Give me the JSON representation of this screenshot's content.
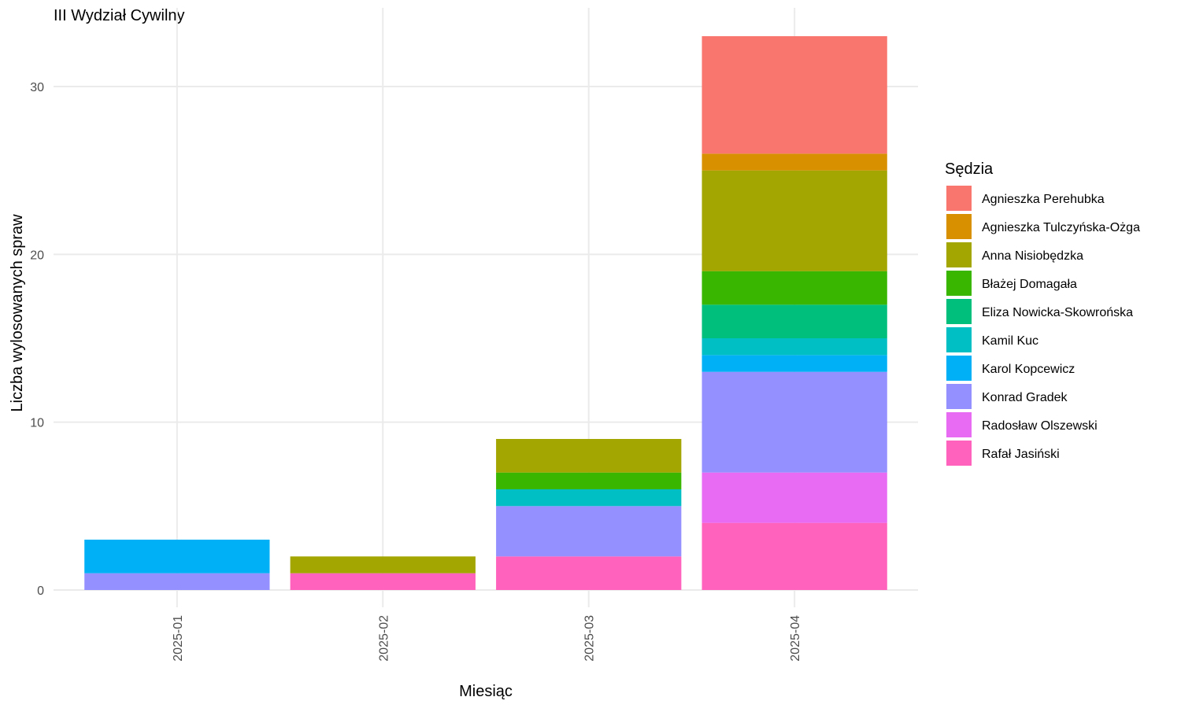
{
  "chart_data": {
    "type": "bar",
    "stacked": true,
    "title": "III Wydział Cywilny",
    "xlabel": "Miesiąc",
    "ylabel": "Liczba wylosowanych spraw",
    "categories": [
      "2025-01",
      "2025-02",
      "2025-03",
      "2025-04"
    ],
    "yticks": [
      0,
      10,
      20,
      30
    ],
    "ylim": [
      0,
      33
    ],
    "grid": true,
    "legend": {
      "title": "Sędzia",
      "position": "right"
    },
    "series": [
      {
        "name": "Agnieszka Perehubka",
        "color": "#F8766D",
        "values": [
          0,
          0,
          0,
          7
        ]
      },
      {
        "name": "Agnieszka Tulczyńska-Ożga",
        "color": "#D89000",
        "values": [
          0,
          0,
          0,
          1
        ]
      },
      {
        "name": "Anna Nisiobędzka",
        "color": "#A3A500",
        "values": [
          0,
          1,
          2,
          6
        ]
      },
      {
        "name": "Błażej Domagała",
        "color": "#39B600",
        "values": [
          0,
          0,
          1,
          2
        ]
      },
      {
        "name": "Eliza Nowicka-Skowrońska",
        "color": "#00BF7D",
        "values": [
          0,
          0,
          0,
          2
        ]
      },
      {
        "name": "Kamil Kuc",
        "color": "#00BFC4",
        "values": [
          0,
          0,
          1,
          1
        ]
      },
      {
        "name": "Karol Kopcewicz",
        "color": "#00B0F6",
        "values": [
          2,
          0,
          0,
          1
        ]
      },
      {
        "name": "Konrad Gradek",
        "color": "#9590FF",
        "values": [
          1,
          0,
          3,
          6
        ]
      },
      {
        "name": "Radosław Olszewski",
        "color": "#E76BF3",
        "values": [
          0,
          0,
          0,
          3
        ]
      },
      {
        "name": "Rafał Jasiński",
        "color": "#FF62BC",
        "values": [
          0,
          1,
          2,
          4
        ]
      }
    ]
  }
}
